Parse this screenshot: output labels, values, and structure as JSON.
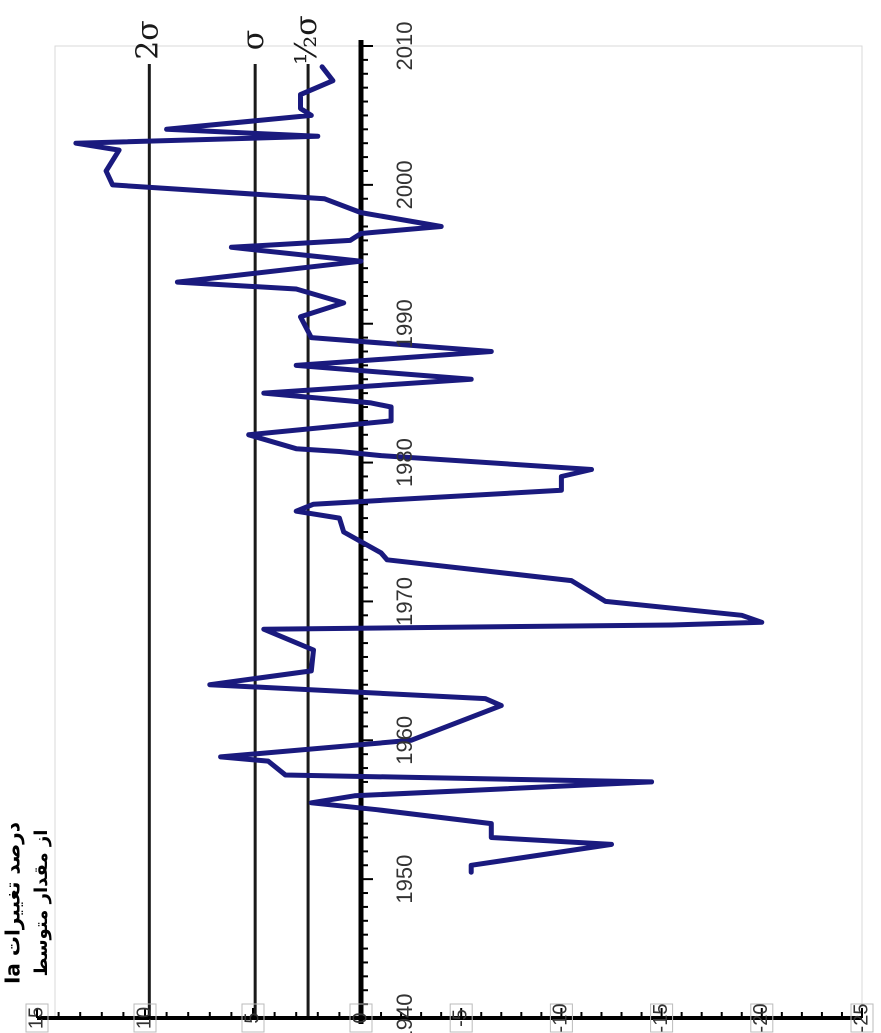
{
  "chart_data": {
    "type": "line",
    "orientation": "rotated-90-clockwise",
    "ylabel_line1": "Ia درصد تغییرات",
    "ylabel_line2": "از مقدار متوسط",
    "x_ticks": [
      "1940",
      "1950",
      "1960",
      "1970",
      "1980",
      "1990",
      "2000",
      "2010"
    ],
    "y_ticks": [
      "15",
      "10",
      "5",
      "0",
      "-5",
      "-10",
      "-15",
      "-20",
      "-25"
    ],
    "xlim": [
      1940,
      2010
    ],
    "ylim": [
      -25,
      15
    ],
    "grid": false,
    "reference_lines": [
      {
        "label": "2σ",
        "value": 9.8
      },
      {
        "label": "σ",
        "value": 4.9
      },
      {
        "label": "½σ",
        "value": 2.45
      }
    ],
    "series": [
      {
        "color": "#1a1a7e",
        "x": [
          1950.5,
          1951.0,
          1952.5,
          1953.0,
          1954.0,
          1955.0,
          1955.5,
          1956.0,
          1957.0,
          1957.5,
          1958.5,
          1958.8,
          1960.0,
          1962.5,
          1963.0,
          1964.0,
          1965.0,
          1966.5,
          1968.0,
          1968.3,
          1968.5,
          1969.0,
          1970.0,
          1971.5,
          1973.0,
          1973.5,
          1975.0,
          1976.0,
          1976.5,
          1977.0,
          1978.0,
          1979.0,
          1979.5,
          1980.5,
          1980.8,
          1981.0,
          1982.0,
          1983.0,
          1984.0,
          1984.3,
          1985.0,
          1986.0,
          1987.0,
          1988.0,
          1989.0,
          1990.5,
          1991.5,
          1992.5,
          1993.0,
          1994.5,
          1995.5,
          1996.0,
          1996.5,
          1997.0,
          1998.0,
          1999.0,
          2000.0,
          2001.0,
          2002.5,
          2003.0,
          2003.5,
          2004.0,
          2005.0,
          2005.5,
          2006.5,
          2007.5,
          2008.5
        ],
        "values": [
          -5.5,
          -5.5,
          -12.5,
          -6.5,
          -6.5,
          -0.8,
          2.3,
          0.3,
          -14.5,
          3.5,
          4.3,
          6.5,
          -2.5,
          -7.0,
          -6.2,
          7.0,
          2.3,
          2.2,
          4.5,
          -15.5,
          -20.0,
          -19.0,
          -12.2,
          -10.5,
          -1.3,
          -1.0,
          0.8,
          1.0,
          3.0,
          2.2,
          -10.0,
          -10.0,
          -11.5,
          -1.0,
          1.0,
          3.0,
          5.2,
          -1.5,
          -1.5,
          -0.5,
          4.5,
          -5.5,
          3.0,
          -6.5,
          2.3,
          2.8,
          0.8,
          3.0,
          8.5,
          0.0,
          6.0,
          0.5,
          0.0,
          -4.0,
          0.0,
          1.7,
          11.5,
          11.8,
          11.2,
          13.2,
          2.0,
          9.0,
          2.3,
          2.8,
          2.8,
          1.3,
          1.8
        ]
      }
    ]
  }
}
